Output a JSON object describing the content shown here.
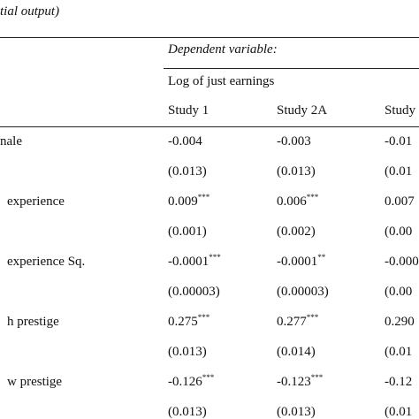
{
  "caption": "tial output)",
  "header": {
    "dependent": "Dependent variable:",
    "outcome": "Log of just earnings",
    "columns": [
      "Study 1",
      "Study 2A",
      "Study"
    ]
  },
  "table": {
    "rows": [
      {
        "label": "nale",
        "estimates": [
          {
            "value": "-0.004"
          },
          {
            "value": "-0.003"
          },
          {
            "value": "-0.01"
          }
        ],
        "errors": [
          "(0.013)",
          "(0.013)",
          "(0.01"
        ]
      },
      {
        "label": "experience",
        "estimates": [
          {
            "value": "0.009",
            "stars": "***"
          },
          {
            "value": "0.006",
            "stars": "***"
          },
          {
            "value": "0.007"
          }
        ],
        "errors": [
          "(0.001)",
          "(0.002)",
          "(0.00"
        ]
      },
      {
        "label": "experience Sq.",
        "estimates": [
          {
            "value": "-0.0001",
            "stars": "***"
          },
          {
            "value": "-0.0001",
            "stars": "**"
          },
          {
            "value": "-0.000"
          }
        ],
        "errors": [
          "(0.00003)",
          "(0.00003)",
          "(0.00"
        ]
      },
      {
        "label": "h prestige",
        "estimates": [
          {
            "value": "0.275",
            "stars": "***"
          },
          {
            "value": "0.277",
            "stars": "***"
          },
          {
            "value": "0.290"
          }
        ],
        "errors": [
          "(0.013)",
          "(0.014)",
          "(0.01"
        ]
      },
      {
        "label": "w prestige",
        "estimates": [
          {
            "value": "-0.126",
            "stars": "***"
          },
          {
            "value": "-0.123",
            "stars": "***"
          },
          {
            "value": "-0.12"
          }
        ],
        "errors": [
          "(0.013)",
          "(0.013)",
          "(0.01"
        ]
      }
    ]
  }
}
